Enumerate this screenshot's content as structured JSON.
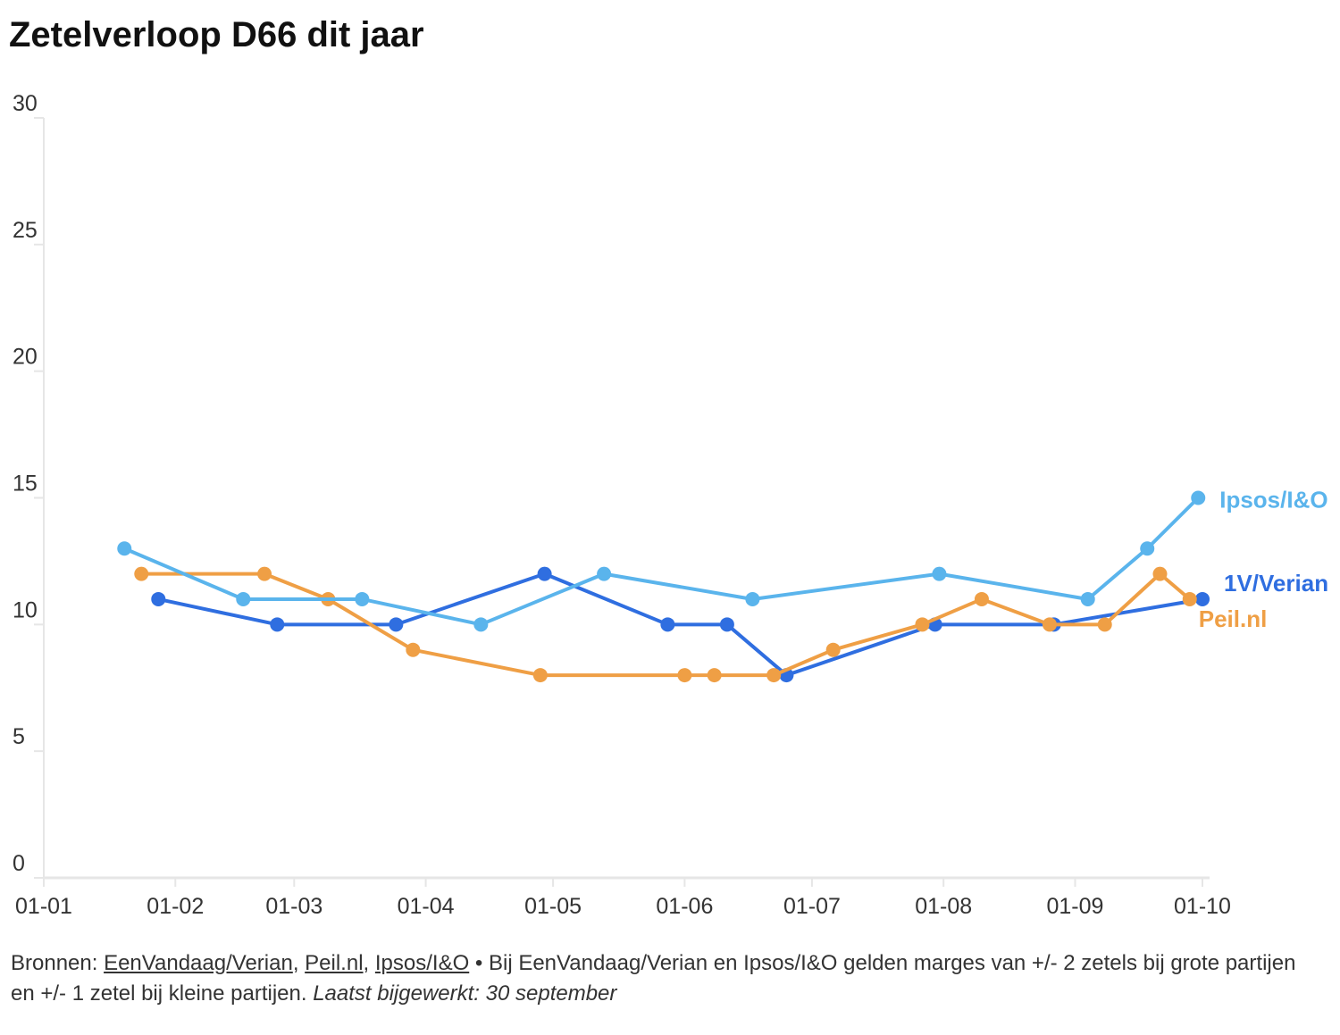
{
  "chart_data": {
    "type": "line",
    "title": "Zetelverloop D66 dit jaar",
    "xlim": [
      "01-01",
      "01-10"
    ],
    "xticks": [
      "01-01",
      "01-02",
      "01-03",
      "01-04",
      "01-05",
      "01-06",
      "01-07",
      "01-08",
      "01-09",
      "01-10"
    ],
    "ylim": [
      0,
      30
    ],
    "yticks": [
      0,
      5,
      10,
      15,
      20,
      25,
      30
    ],
    "legend": "line-end",
    "series": [
      {
        "name": "1V/Verian",
        "color": "#2f6ee0",
        "x": [
          "28-01",
          "25-02",
          "25-03",
          "29-04",
          "28-05",
          "11-06",
          "25-06",
          "30-07",
          "27-08",
          "01-10"
        ],
        "values": [
          11,
          10,
          10,
          12,
          10,
          10,
          8,
          10,
          10,
          11
        ]
      },
      {
        "name": "Peil.nl",
        "color": "#ef9f45",
        "x": [
          "24-01",
          "22-02",
          "09-03",
          "29-03",
          "28-04",
          "01-06",
          "08-06",
          "22-06",
          "06-07",
          "27-07",
          "10-08",
          "26-08",
          "08-09",
          "21-09",
          "28-09"
        ],
        "values": [
          12,
          12,
          11,
          9,
          8,
          8,
          8,
          8,
          9,
          10,
          11,
          10,
          10,
          12,
          11
        ]
      },
      {
        "name": "Ipsos/I&O",
        "color": "#5ab4ec",
        "x": [
          "20-01",
          "17-02",
          "17-03",
          "14-04",
          "13-05",
          "17-06",
          "31-07",
          "04-09",
          "18-09",
          "30-09"
        ],
        "values": [
          13,
          11,
          11,
          10,
          12,
          11,
          12,
          11,
          13,
          15
        ]
      }
    ],
    "footer": [
      {
        "text": "Bronnen: "
      },
      {
        "text": "EenVandaag/Verian",
        "style": "link"
      },
      {
        "text": ", "
      },
      {
        "text": "Peil.nl",
        "style": "link"
      },
      {
        "text": ", "
      },
      {
        "text": "Ipsos/I&O",
        "style": "link"
      },
      {
        "text": " • Bij EenVandaag/Verian en Ipsos/I&O gelden marges van +/- 2 zetels bij grote partijen en +/- 1 zetel bij kleine partijen. "
      },
      {
        "text": "Laatst bijgewerkt: 30 september",
        "style": "italic"
      }
    ]
  }
}
